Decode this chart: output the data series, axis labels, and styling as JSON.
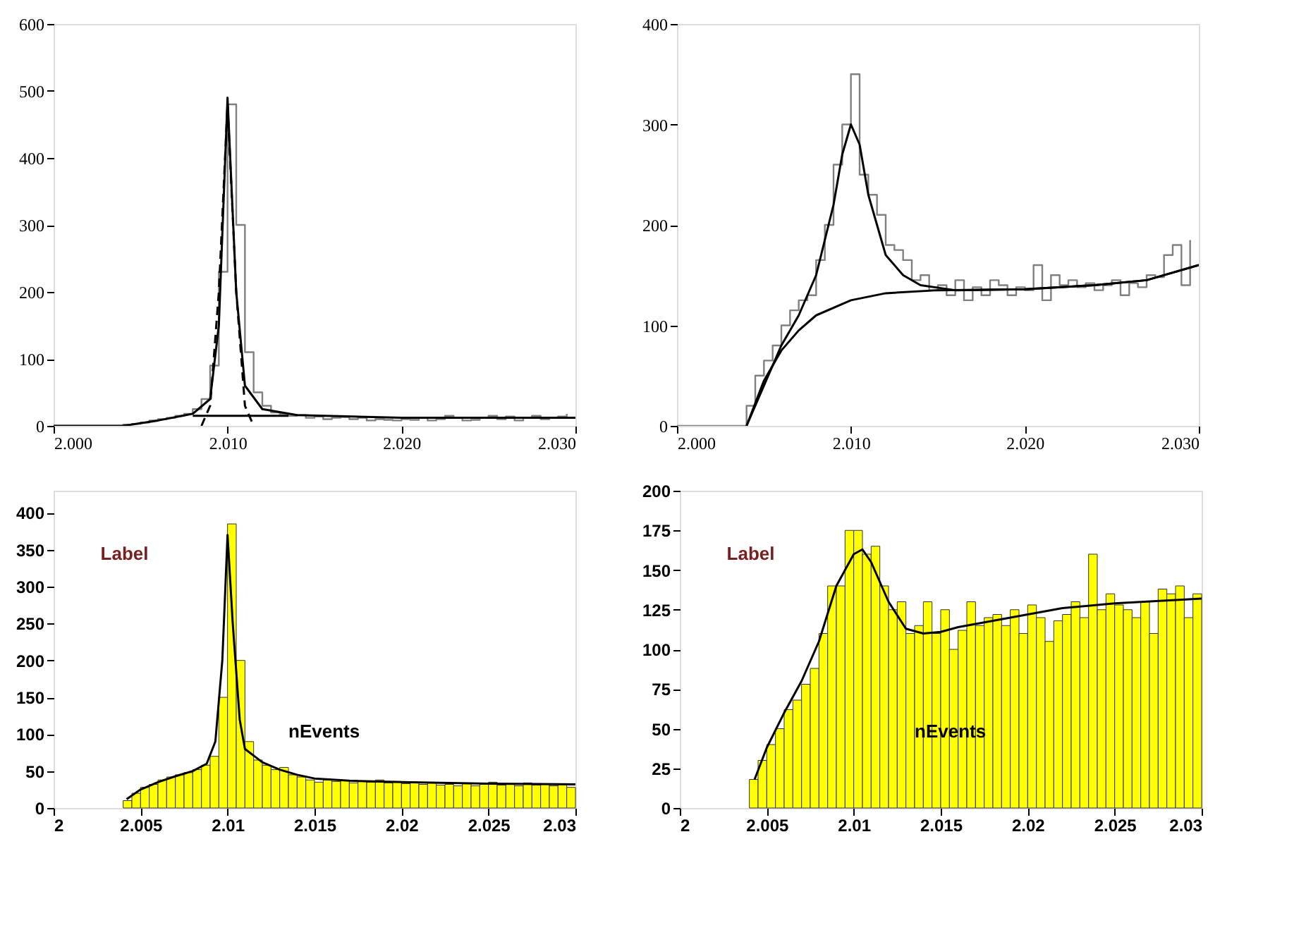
{
  "chart_data": [
    {
      "type": "step",
      "xlim": [
        2.0,
        2.03
      ],
      "ylim": [
        0,
        600
      ],
      "xticks": [
        {
          "value": 2.0,
          "label": "2.000"
        },
        {
          "value": 2.01,
          "label": "2.010"
        },
        {
          "value": 2.02,
          "label": "2.020"
        },
        {
          "value": 2.03,
          "label": "2.030"
        }
      ],
      "yticks": [
        0,
        100,
        200,
        300,
        400,
        500,
        600
      ],
      "grid": false,
      "series": [
        {
          "type": "step",
          "color": "#808080",
          "x": [
            2.0,
            2.0005,
            2.001,
            2.0015,
            2.002,
            2.0025,
            2.003,
            2.0035,
            2.004,
            2.0045,
            2.005,
            2.0055,
            2.006,
            2.0065,
            2.007,
            2.0075,
            2.008,
            2.0085,
            2.009,
            2.0095,
            2.01,
            2.0105,
            2.011,
            2.0115,
            2.012,
            2.0125,
            2.013,
            2.0135,
            2.014,
            2.0145,
            2.015,
            2.0155,
            2.016,
            2.0165,
            2.017,
            2.0175,
            2.018,
            2.0185,
            2.019,
            2.0195,
            2.02,
            2.0205,
            2.021,
            2.0215,
            2.022,
            2.0225,
            2.023,
            2.0235,
            2.024,
            2.0245,
            2.025,
            2.0255,
            2.026,
            2.0265,
            2.027,
            2.0275,
            2.028,
            2.0285,
            2.029,
            2.0295
          ],
          "values": [
            0,
            0,
            0,
            0,
            0,
            0,
            0,
            0,
            2,
            3,
            5,
            8,
            10,
            12,
            15,
            18,
            25,
            40,
            90,
            230,
            480,
            300,
            110,
            50,
            30,
            20,
            18,
            15,
            16,
            12,
            14,
            10,
            12,
            13,
            10,
            12,
            8,
            10,
            9,
            8,
            10,
            9,
            12,
            8,
            10,
            15,
            12,
            8,
            9,
            12,
            15,
            10,
            14,
            8,
            12,
            15,
            10,
            12,
            14,
            18
          ]
        },
        {
          "type": "line",
          "color": "#000000",
          "x": [
            2.0,
            2.004,
            2.006,
            2.008,
            2.009,
            2.0095,
            2.01,
            2.0105,
            2.011,
            2.012,
            2.014,
            2.02,
            2.03
          ],
          "values": [
            0,
            0,
            8,
            18,
            40,
            150,
            490,
            200,
            60,
            25,
            16,
            12,
            12
          ]
        },
        {
          "type": "line",
          "color": "#000000",
          "x": [
            2.008,
            2.0135
          ],
          "values": [
            15,
            15
          ]
        },
        {
          "type": "line",
          "color": "#000000",
          "line_style": "dashed",
          "x": [
            2.0085,
            2.009,
            2.0095,
            2.01,
            2.0105,
            2.011,
            2.0115
          ],
          "values": [
            0,
            30,
            200,
            480,
            200,
            30,
            0
          ]
        }
      ]
    },
    {
      "type": "step",
      "xlim": [
        2.0,
        2.03
      ],
      "ylim": [
        0,
        400
      ],
      "xticks": [
        {
          "value": 2.0,
          "label": "2.000"
        },
        {
          "value": 2.01,
          "label": "2.010"
        },
        {
          "value": 2.02,
          "label": "2.020"
        },
        {
          "value": 2.03,
          "label": "2.030"
        }
      ],
      "yticks": [
        0,
        100,
        200,
        300,
        400
      ],
      "grid": false,
      "series": [
        {
          "type": "step",
          "color": "#808080",
          "x": [
            2.0,
            2.0005,
            2.001,
            2.0015,
            2.002,
            2.0025,
            2.003,
            2.0035,
            2.004,
            2.0045,
            2.005,
            2.0055,
            2.006,
            2.0065,
            2.007,
            2.0075,
            2.008,
            2.0085,
            2.009,
            2.0095,
            2.01,
            2.0105,
            2.011,
            2.0115,
            2.012,
            2.0125,
            2.013,
            2.0135,
            2.014,
            2.0145,
            2.015,
            2.0155,
            2.016,
            2.0165,
            2.017,
            2.0175,
            2.018,
            2.0185,
            2.019,
            2.0195,
            2.02,
            2.0205,
            2.021,
            2.0215,
            2.022,
            2.0225,
            2.023,
            2.0235,
            2.024,
            2.0245,
            2.025,
            2.0255,
            2.026,
            2.0265,
            2.027,
            2.0275,
            2.028,
            2.0285,
            2.029,
            2.0295
          ],
          "values": [
            0,
            0,
            0,
            0,
            0,
            0,
            0,
            0,
            20,
            50,
            65,
            80,
            100,
            115,
            125,
            130,
            165,
            200,
            260,
            300,
            350,
            250,
            230,
            210,
            180,
            175,
            165,
            145,
            150,
            135,
            140,
            130,
            145,
            125,
            138,
            130,
            145,
            140,
            130,
            138,
            135,
            160,
            125,
            150,
            140,
            145,
            138,
            142,
            135,
            140,
            145,
            130,
            142,
            138,
            150,
            148,
            170,
            180,
            140,
            185
          ]
        },
        {
          "type": "line",
          "color": "#000000",
          "x": [
            2.004,
            2.005,
            2.006,
            2.007,
            2.008,
            2.009,
            2.0095,
            2.01,
            2.0105,
            2.011,
            2.012,
            2.013,
            2.014,
            2.016,
            2.02,
            2.024,
            2.027,
            2.03
          ],
          "values": [
            0,
            40,
            80,
            110,
            150,
            220,
            270,
            300,
            280,
            230,
            170,
            150,
            140,
            135,
            136,
            140,
            145,
            160
          ]
        },
        {
          "type": "line",
          "color": "#000000",
          "x": [
            2.004,
            2.005,
            2.006,
            2.007,
            2.008,
            2.01,
            2.012,
            2.015,
            2.02,
            2.024,
            2.027,
            2.03
          ],
          "values": [
            0,
            45,
            75,
            95,
            110,
            125,
            132,
            135,
            136,
            140,
            145,
            160
          ]
        }
      ]
    },
    {
      "type": "histogram",
      "xlim": [
        2.0,
        2.03
      ],
      "ylim": [
        0,
        430
      ],
      "xticks": [
        2,
        2.005,
        2.01,
        2.015,
        2.02,
        2.025,
        2.03
      ],
      "yticks": [
        0,
        50,
        100,
        150,
        200,
        250,
        300,
        350,
        400
      ],
      "grid": false,
      "annotations": [
        "Label",
        "nEvents"
      ],
      "series": [
        {
          "type": "histogram",
          "color": "#ffff00",
          "bins": [
            2.0,
            2.0005,
            2.001,
            2.0015,
            2.002,
            2.0025,
            2.003,
            2.0035,
            2.004,
            2.0045,
            2.005,
            2.0055,
            2.006,
            2.0065,
            2.007,
            2.0075,
            2.008,
            2.0085,
            2.009,
            2.0095,
            2.01,
            2.0105,
            2.011,
            2.0115,
            2.012,
            2.0125,
            2.013,
            2.0135,
            2.014,
            2.0145,
            2.015,
            2.0155,
            2.016,
            2.0165,
            2.017,
            2.0175,
            2.018,
            2.0185,
            2.019,
            2.0195,
            2.02,
            2.0205,
            2.021,
            2.0215,
            2.022,
            2.0225,
            2.023,
            2.0235,
            2.024,
            2.0245,
            2.025,
            2.0255,
            2.026,
            2.0265,
            2.027,
            2.0275,
            2.028,
            2.0285,
            2.029,
            2.0295,
            2.03
          ],
          "values": [
            0,
            0,
            0,
            0,
            0,
            0,
            0,
            0,
            10,
            20,
            28,
            32,
            38,
            42,
            45,
            48,
            52,
            58,
            70,
            150,
            385,
            200,
            90,
            65,
            58,
            52,
            55,
            45,
            42,
            38,
            35,
            38,
            36,
            37,
            34,
            36,
            35,
            38,
            34,
            36,
            33,
            35,
            32,
            34,
            31,
            32,
            30,
            33,
            30,
            32,
            35,
            31,
            33,
            30,
            34,
            31,
            32,
            30,
            33,
            28
          ]
        },
        {
          "type": "line",
          "color": "#000000",
          "x": [
            2.0042,
            2.005,
            2.006,
            2.007,
            2.008,
            2.0088,
            2.0093,
            2.0097,
            2.01,
            2.0103,
            2.0107,
            2.011,
            2.012,
            2.013,
            2.014,
            2.015,
            2.017,
            2.02,
            2.025,
            2.03
          ],
          "values": [
            12,
            25,
            35,
            43,
            50,
            60,
            90,
            200,
            370,
            250,
            120,
            80,
            62,
            52,
            45,
            40,
            37,
            35,
            33,
            32
          ]
        }
      ]
    },
    {
      "type": "histogram",
      "xlim": [
        2.0,
        2.03
      ],
      "ylim": [
        0,
        200
      ],
      "xticks": [
        2,
        2.005,
        2.01,
        2.015,
        2.02,
        2.025,
        2.03
      ],
      "yticks": [
        0,
        25,
        50,
        75,
        100,
        125,
        150,
        175,
        200
      ],
      "grid": false,
      "annotations": [
        "Label",
        "nEvents"
      ],
      "series": [
        {
          "type": "histogram",
          "color": "#ffff00",
          "bins": [
            2.0,
            2.0005,
            2.001,
            2.0015,
            2.002,
            2.0025,
            2.003,
            2.0035,
            2.004,
            2.0045,
            2.005,
            2.0055,
            2.006,
            2.0065,
            2.007,
            2.0075,
            2.008,
            2.0085,
            2.009,
            2.0095,
            2.01,
            2.0105,
            2.011,
            2.0115,
            2.012,
            2.0125,
            2.013,
            2.0135,
            2.014,
            2.0145,
            2.015,
            2.0155,
            2.016,
            2.0165,
            2.017,
            2.0175,
            2.018,
            2.0185,
            2.019,
            2.0195,
            2.02,
            2.0205,
            2.021,
            2.0215,
            2.022,
            2.0225,
            2.023,
            2.0235,
            2.024,
            2.0245,
            2.025,
            2.0255,
            2.026,
            2.0265,
            2.027,
            2.0275,
            2.028,
            2.0285,
            2.029,
            2.0295,
            2.03
          ],
          "values": [
            0,
            0,
            0,
            0,
            0,
            0,
            0,
            0,
            18,
            30,
            40,
            50,
            62,
            68,
            78,
            88,
            110,
            140,
            140,
            175,
            175,
            160,
            165,
            140,
            125,
            130,
            110,
            115,
            130,
            110,
            125,
            100,
            112,
            130,
            115,
            120,
            122,
            115,
            125,
            110,
            128,
            120,
            105,
            118,
            122,
            130,
            120,
            160,
            125,
            135,
            128,
            125,
            120,
            130,
            110,
            138,
            135,
            140,
            120,
            135
          ]
        },
        {
          "type": "line",
          "color": "#000000",
          "x": [
            2.0043,
            2.005,
            2.006,
            2.007,
            2.008,
            2.009,
            2.01,
            2.0105,
            2.011,
            2.012,
            2.013,
            2.014,
            2.015,
            2.016,
            2.018,
            2.02,
            2.022,
            2.025,
            2.03
          ],
          "values": [
            18,
            38,
            60,
            80,
            105,
            140,
            160,
            163,
            155,
            130,
            113,
            110,
            111,
            114,
            118,
            122,
            126,
            129,
            132
          ]
        }
      ]
    }
  ]
}
